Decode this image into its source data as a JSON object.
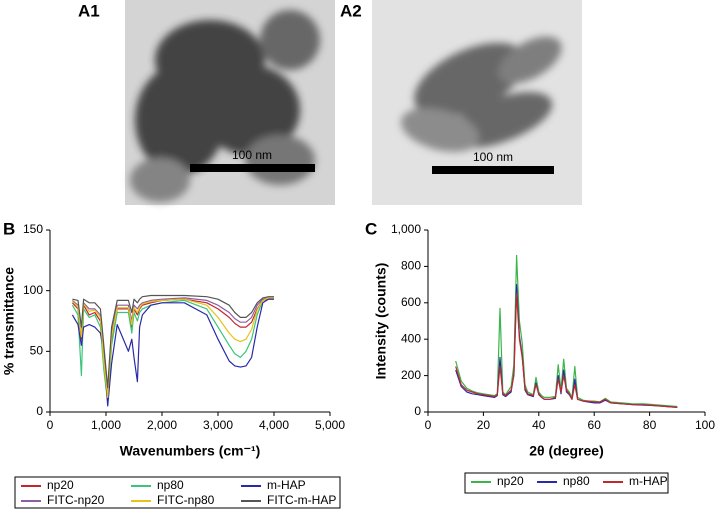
{
  "images": [
    {
      "label": "A1",
      "scale_bar": "100 nm"
    },
    {
      "label": "A2",
      "scale_bar": "100 nm"
    }
  ],
  "chart_data": [
    {
      "type": "line",
      "panel_label": "B",
      "xlabel": "Wavenumbers (cm⁻¹)",
      "ylabel": "% transmittance",
      "xlim": [
        0,
        5000
      ],
      "xticks": [
        0,
        {
          "value": 1000,
          "label": "1,000"
        },
        {
          "value": 2000,
          "label": "2,000"
        },
        {
          "value": 3000,
          "label": "3,000"
        },
        {
          "value": 4000,
          "label": "4,000"
        },
        {
          "value": 5000,
          "label": "5,000"
        }
      ],
      "ylim": [
        0,
        150
      ],
      "yticks": [
        0,
        50,
        100,
        150
      ],
      "x": [
        400,
        500,
        560,
        600,
        700,
        800,
        900,
        960,
        1030,
        1100,
        1200,
        1400,
        1460,
        1500,
        1560,
        1600,
        1650,
        1800,
        2000,
        2400,
        2800,
        3000,
        3200,
        3300,
        3400,
        3500,
        3600,
        3700,
        3800,
        3900,
        4000
      ],
      "series": [
        {
          "name": "np20",
          "color": "#c0282d",
          "values": [
            90,
            85,
            60,
            88,
            80,
            82,
            75,
            40,
            10,
            60,
            85,
            85,
            70,
            85,
            80,
            85,
            88,
            90,
            92,
            93,
            90,
            85,
            78,
            73,
            70,
            70,
            74,
            85,
            92,
            93,
            93
          ]
        },
        {
          "name": "np80",
          "color": "#3cc47c",
          "values": [
            88,
            80,
            30,
            85,
            78,
            80,
            70,
            35,
            8,
            55,
            82,
            82,
            65,
            82,
            75,
            82,
            85,
            88,
            90,
            92,
            85,
            70,
            55,
            48,
            45,
            50,
            60,
            80,
            92,
            94,
            94
          ]
        },
        {
          "name": "m-HAP",
          "color": "#2a2aa8",
          "values": [
            80,
            72,
            55,
            70,
            72,
            70,
            65,
            50,
            5,
            40,
            72,
            50,
            60,
            45,
            25,
            70,
            80,
            88,
            90,
            90,
            80,
            60,
            42,
            38,
            37,
            38,
            45,
            70,
            90,
            93,
            93
          ]
        },
        {
          "name": "FITC-np20",
          "color": "#8e5ea2",
          "values": [
            92,
            88,
            65,
            90,
            85,
            85,
            80,
            45,
            15,
            65,
            88,
            88,
            75,
            88,
            85,
            88,
            90,
            92,
            93,
            94,
            92,
            88,
            82,
            77,
            74,
            74,
            78,
            88,
            93,
            94,
            94
          ]
        },
        {
          "name": "FITC-np80",
          "color": "#e8c21a",
          "values": [
            91,
            87,
            62,
            89,
            83,
            84,
            78,
            42,
            12,
            62,
            86,
            86,
            72,
            86,
            82,
            86,
            89,
            91,
            92,
            93,
            88,
            78,
            65,
            60,
            58,
            60,
            68,
            84,
            92,
            94,
            94
          ]
        },
        {
          "name": "FITC-m-HAP",
          "color": "#555555",
          "values": [
            93,
            92,
            70,
            93,
            90,
            90,
            85,
            55,
            20,
            70,
            92,
            92,
            82,
            93,
            90,
            93,
            95,
            96,
            96,
            96,
            95,
            93,
            88,
            82,
            78,
            78,
            82,
            90,
            94,
            95,
            95
          ]
        }
      ]
    },
    {
      "type": "line",
      "panel_label": "C",
      "xlabel": "2θ (degree)",
      "ylabel": "Intensity (counts)",
      "xlim": [
        0,
        100
      ],
      "xticks": [
        0,
        20,
        40,
        60,
        80,
        100
      ],
      "ylim": [
        0,
        1000
      ],
      "yticks": [
        0,
        200,
        400,
        600,
        800,
        {
          "value": 1000,
          "label": "1,000"
        }
      ],
      "x": [
        10,
        12,
        14,
        16,
        18,
        20,
        22,
        24,
        25,
        26,
        27,
        28,
        30,
        31,
        32,
        33,
        34,
        35,
        36,
        38,
        39,
        40,
        41,
        42,
        44,
        46,
        47,
        48,
        49,
        50,
        51,
        52,
        53,
        54,
        56,
        58,
        60,
        62,
        64,
        66,
        70,
        74,
        78,
        82,
        86,
        90
      ],
      "series": [
        {
          "name": "np20",
          "color": "#3cb44b",
          "values": [
            280,
            170,
            130,
            115,
            105,
            100,
            95,
            90,
            100,
            570,
            110,
            95,
            140,
            260,
            860,
            500,
            380,
            150,
            110,
            95,
            190,
            110,
            90,
            80,
            80,
            85,
            260,
            120,
            290,
            130,
            110,
            80,
            250,
            80,
            65,
            60,
            60,
            55,
            75,
            55,
            50,
            45,
            45,
            40,
            35,
            30
          ]
        },
        {
          "name": "np80",
          "color": "#2a2aa8",
          "values": [
            230,
            140,
            110,
            100,
            95,
            90,
            85,
            80,
            90,
            300,
            95,
            85,
            110,
            210,
            700,
            420,
            310,
            120,
            95,
            85,
            160,
            95,
            80,
            70,
            70,
            75,
            200,
            100,
            230,
            110,
            95,
            70,
            180,
            70,
            60,
            55,
            50,
            50,
            65,
            50,
            45,
            40,
            38,
            35,
            30,
            25
          ]
        },
        {
          "name": "m-HAP",
          "color": "#c0282d",
          "values": [
            250,
            150,
            120,
            110,
            100,
            95,
            90,
            85,
            95,
            250,
            100,
            90,
            120,
            200,
            650,
            400,
            300,
            130,
            100,
            90,
            150,
            100,
            80,
            70,
            70,
            80,
            180,
            110,
            200,
            120,
            100,
            70,
            150,
            70,
            60,
            60,
            55,
            55,
            70,
            50,
            45,
            40,
            40,
            35,
            30,
            25
          ]
        }
      ]
    }
  ]
}
